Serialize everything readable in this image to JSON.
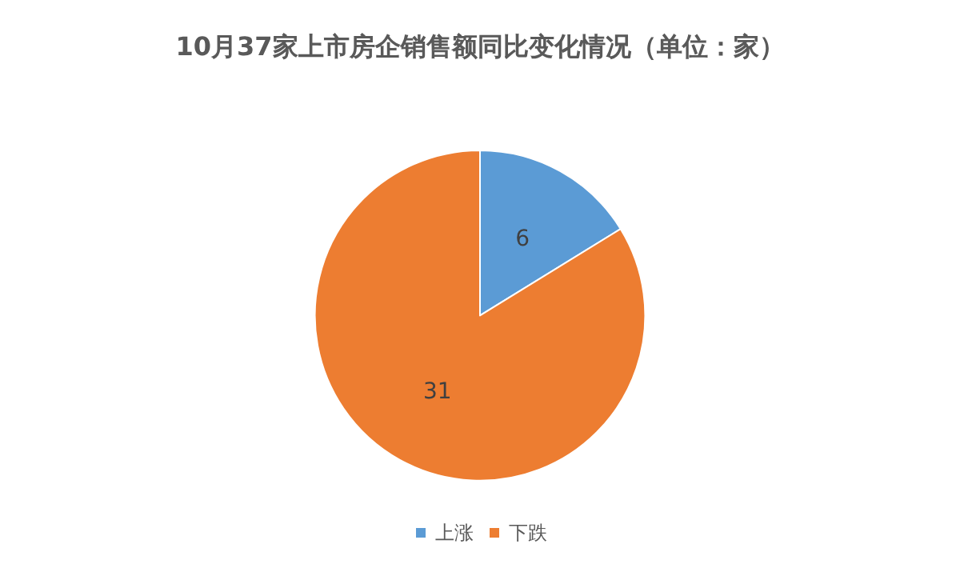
{
  "chart_data": {
    "type": "pie",
    "title": "10月37家上市房企销售额同比变化情况（单位：家）",
    "categories": [
      "上涨",
      "下跌"
    ],
    "values": [
      6,
      31
    ],
    "colors": [
      "#5b9bd5",
      "#ed7d31"
    ],
    "data_labels": true,
    "legend": "bottom"
  }
}
